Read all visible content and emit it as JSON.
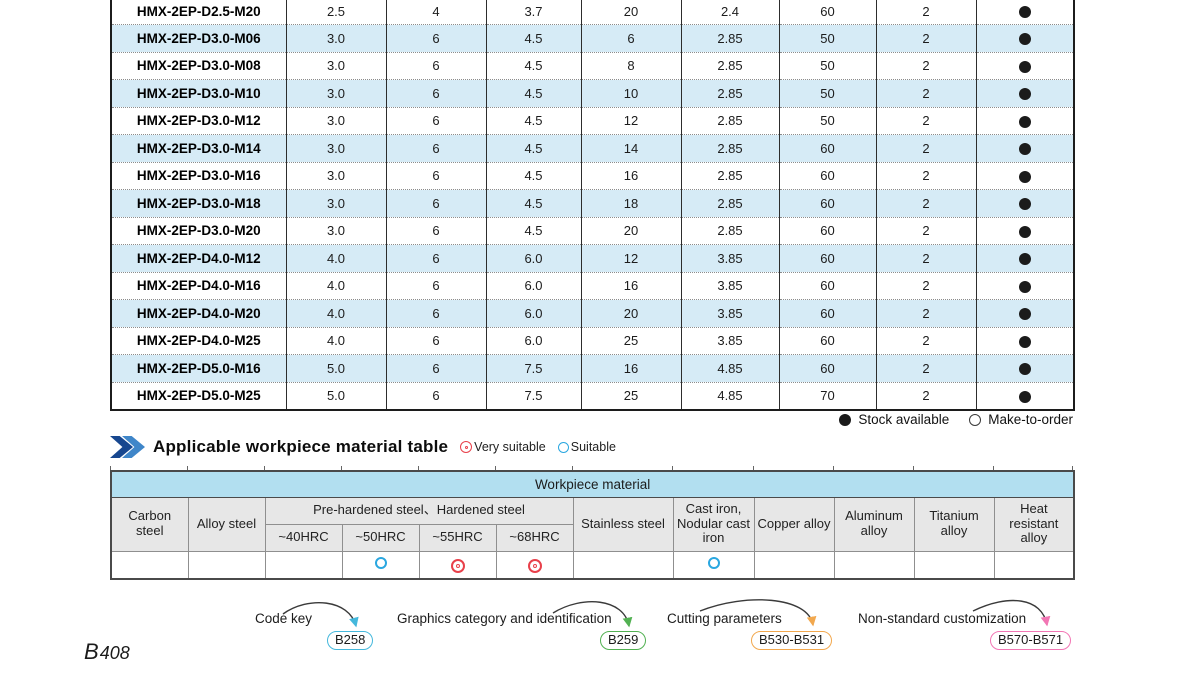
{
  "product_table": {
    "rows": [
      {
        "model": "HMX-2EP-D2.5-M20",
        "values": [
          "2.5",
          "4",
          "3.7",
          "20",
          "2.4",
          "60",
          "2"
        ],
        "stock": "filled"
      },
      {
        "model": "HMX-2EP-D3.0-M06",
        "values": [
          "3.0",
          "6",
          "4.5",
          "6",
          "2.85",
          "50",
          "2"
        ],
        "stock": "filled"
      },
      {
        "model": "HMX-2EP-D3.0-M08",
        "values": [
          "3.0",
          "6",
          "4.5",
          "8",
          "2.85",
          "50",
          "2"
        ],
        "stock": "filled"
      },
      {
        "model": "HMX-2EP-D3.0-M10",
        "values": [
          "3.0",
          "6",
          "4.5",
          "10",
          "2.85",
          "50",
          "2"
        ],
        "stock": "filled"
      },
      {
        "model": "HMX-2EP-D3.0-M12",
        "values": [
          "3.0",
          "6",
          "4.5",
          "12",
          "2.85",
          "50",
          "2"
        ],
        "stock": "filled"
      },
      {
        "model": "HMX-2EP-D3.0-M14",
        "values": [
          "3.0",
          "6",
          "4.5",
          "14",
          "2.85",
          "60",
          "2"
        ],
        "stock": "filled"
      },
      {
        "model": "HMX-2EP-D3.0-M16",
        "values": [
          "3.0",
          "6",
          "4.5",
          "16",
          "2.85",
          "60",
          "2"
        ],
        "stock": "filled"
      },
      {
        "model": "HMX-2EP-D3.0-M18",
        "values": [
          "3.0",
          "6",
          "4.5",
          "18",
          "2.85",
          "60",
          "2"
        ],
        "stock": "filled"
      },
      {
        "model": "HMX-2EP-D3.0-M20",
        "values": [
          "3.0",
          "6",
          "4.5",
          "20",
          "2.85",
          "60",
          "2"
        ],
        "stock": "filled"
      },
      {
        "model": "HMX-2EP-D4.0-M12",
        "values": [
          "4.0",
          "6",
          "6.0",
          "12",
          "3.85",
          "60",
          "2"
        ],
        "stock": "filled"
      },
      {
        "model": "HMX-2EP-D4.0-M16",
        "values": [
          "4.0",
          "6",
          "6.0",
          "16",
          "3.85",
          "60",
          "2"
        ],
        "stock": "filled"
      },
      {
        "model": "HMX-2EP-D4.0-M20",
        "values": [
          "4.0",
          "6",
          "6.0",
          "20",
          "3.85",
          "60",
          "2"
        ],
        "stock": "filled"
      },
      {
        "model": "HMX-2EP-D4.0-M25",
        "values": [
          "4.0",
          "6",
          "6.0",
          "25",
          "3.85",
          "60",
          "2"
        ],
        "stock": "filled"
      },
      {
        "model": "HMX-2EP-D5.0-M16",
        "values": [
          "5.0",
          "6",
          "7.5",
          "16",
          "4.85",
          "60",
          "2"
        ],
        "stock": "filled"
      },
      {
        "model": "HMX-2EP-D5.0-M25",
        "values": [
          "5.0",
          "6",
          "7.5",
          "25",
          "4.85",
          "70",
          "2"
        ],
        "stock": "filled"
      }
    ]
  },
  "stock_legend": {
    "available": "Stock available",
    "make_to_order": "Make-to-order"
  },
  "section_header": {
    "title": "Applicable workpiece material table",
    "very_suitable": "Very suitable",
    "suitable": "Suitable"
  },
  "workpiece_table": {
    "banner": "Workpiece material",
    "col_carbon": "Carbon steel",
    "col_alloy": "Alloy steel",
    "group_hardened": "Pre-hardened steel、Hardened steel",
    "hrc_levels": [
      "~40HRC",
      "~50HRC",
      "~55HRC",
      "~68HRC"
    ],
    "col_stainless": "Stainless steel",
    "col_cast_iron": "Cast iron, Nodular cast iron",
    "col_copper": "Copper alloy",
    "col_aluminum": "Aluminum alloy",
    "col_titanium": "Titanium alloy",
    "col_heat": "Heat resistant alloy",
    "ratings": [
      "",
      "",
      "",
      "suitable",
      "very_suitable",
      "very_suitable",
      "",
      "suitable",
      "",
      "",
      "",
      ""
    ]
  },
  "footnotes": [
    {
      "label": "Code key",
      "badge": "B258",
      "accent": "#45b8dc"
    },
    {
      "label": "Graphics category and identification",
      "badge": "B259",
      "accent": "#52b152"
    },
    {
      "label": "Cutting parameters",
      "badge": "B530-B531",
      "accent": "#f2a84e"
    },
    {
      "label": "Non-standard customization",
      "badge": "B570-B571",
      "accent": "#f276b4"
    }
  ],
  "page_number": {
    "prefix": "B",
    "digits": "408"
  },
  "colors": {
    "row_alt": "#d6ebf6",
    "banner_blue": "#b2dff0",
    "header_gray": "#e7e7e7",
    "very_suitable_red": "#e8404a",
    "suitable_blue": "#2aa7e0",
    "chevron_dark": "#17478f",
    "chevron_light": "#3f86c9"
  }
}
